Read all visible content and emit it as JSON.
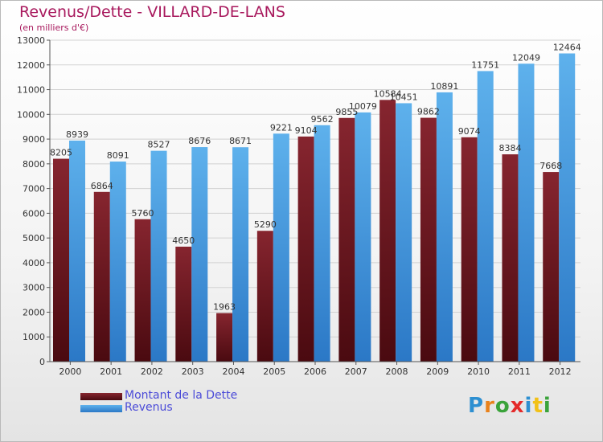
{
  "title": "Revenus/Dette - VILLARD-DE-LANS",
  "subtitle": "(en milliers d'€)",
  "logo": "Proxiti",
  "colors": {
    "title": "#a8195d",
    "debt_top": "#86252f",
    "debt_bottom": "#4a0a10",
    "revenue_top": "#5eb1ec",
    "revenue_bottom": "#2b78c6",
    "legend_text": "#4b4bd8"
  },
  "legend": {
    "position": "bottom-left",
    "items": [
      {
        "label": "Montant de la Dette",
        "series": "debt"
      },
      {
        "label": "Revenus",
        "series": "revenue"
      }
    ]
  },
  "chart_data": {
    "type": "bar",
    "title": "Revenus/Dette - VILLARD-DE-LANS",
    "subtitle": "(en milliers d'€)",
    "categories": [
      "2000",
      "2001",
      "2002",
      "2003",
      "2004",
      "2005",
      "2006",
      "2007",
      "2008",
      "2009",
      "2010",
      "2011",
      "2012"
    ],
    "series": [
      {
        "name": "Montant de la Dette",
        "values": [
          8205,
          6864,
          5760,
          4650,
          1963,
          5290,
          9104,
          9855,
          10584,
          9862,
          9074,
          8384,
          7668
        ]
      },
      {
        "name": "Revenus",
        "values": [
          8939,
          8091,
          8527,
          8676,
          8671,
          9221,
          9562,
          10079,
          10451,
          10891,
          11751,
          12049,
          12464
        ]
      }
    ],
    "ylim": [
      0,
      13000
    ],
    "yticks": [
      0,
      1000,
      2000,
      3000,
      4000,
      5000,
      6000,
      7000,
      8000,
      9000,
      10000,
      11000,
      12000,
      13000
    ],
    "grid": true
  }
}
